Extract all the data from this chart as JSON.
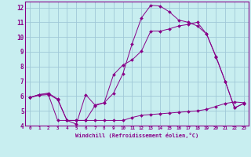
{
  "title": "",
  "xlabel": "Windchill (Refroidissement éolien,°C)",
  "ylabel": "",
  "background_color": "#c8eef0",
  "grid_color": "#a0c8d8",
  "line_color": "#880088",
  "xlim": [
    -0.5,
    23.5
  ],
  "ylim": [
    4,
    12.4
  ],
  "xticks": [
    0,
    1,
    2,
    3,
    4,
    5,
    6,
    7,
    8,
    9,
    10,
    11,
    12,
    13,
    14,
    15,
    16,
    17,
    18,
    19,
    20,
    21,
    22,
    23
  ],
  "yticks": [
    4,
    5,
    6,
    7,
    8,
    9,
    10,
    11,
    12
  ],
  "series": [
    {
      "x": [
        0,
        1,
        2,
        3,
        4,
        5,
        6,
        7,
        8,
        9,
        10,
        11,
        12,
        13,
        14,
        15,
        16,
        17,
        18,
        19,
        20,
        21,
        22,
        23
      ],
      "y": [
        5.9,
        6.1,
        6.2,
        5.8,
        4.35,
        4.1,
        6.1,
        5.4,
        5.55,
        6.2,
        7.5,
        9.55,
        11.3,
        12.15,
        12.1,
        11.7,
        11.15,
        11.0,
        10.75,
        10.2,
        8.7,
        7.0,
        5.2,
        5.5
      ]
    },
    {
      "x": [
        0,
        1,
        2,
        3,
        4,
        5,
        6,
        7,
        8,
        9,
        10,
        11,
        12,
        13,
        14,
        15,
        16,
        17,
        18,
        19,
        20,
        21,
        22,
        23
      ],
      "y": [
        5.9,
        6.1,
        6.15,
        5.75,
        4.35,
        4.35,
        4.35,
        5.35,
        5.55,
        7.45,
        8.1,
        8.45,
        9.05,
        10.4,
        10.4,
        10.55,
        10.75,
        10.85,
        11.0,
        10.2,
        8.65,
        7.0,
        5.2,
        5.5
      ]
    },
    {
      "x": [
        0,
        1,
        2,
        3,
        4,
        5,
        6,
        7,
        8,
        9,
        10,
        11,
        12,
        13,
        14,
        15,
        16,
        17,
        18,
        19,
        20,
        21,
        22,
        23
      ],
      "y": [
        5.9,
        6.05,
        6.1,
        4.35,
        4.35,
        4.35,
        4.35,
        4.35,
        4.35,
        4.35,
        4.35,
        4.55,
        4.7,
        4.75,
        4.8,
        4.85,
        4.9,
        4.95,
        5.0,
        5.1,
        5.3,
        5.5,
        5.6,
        5.55
      ]
    }
  ]
}
